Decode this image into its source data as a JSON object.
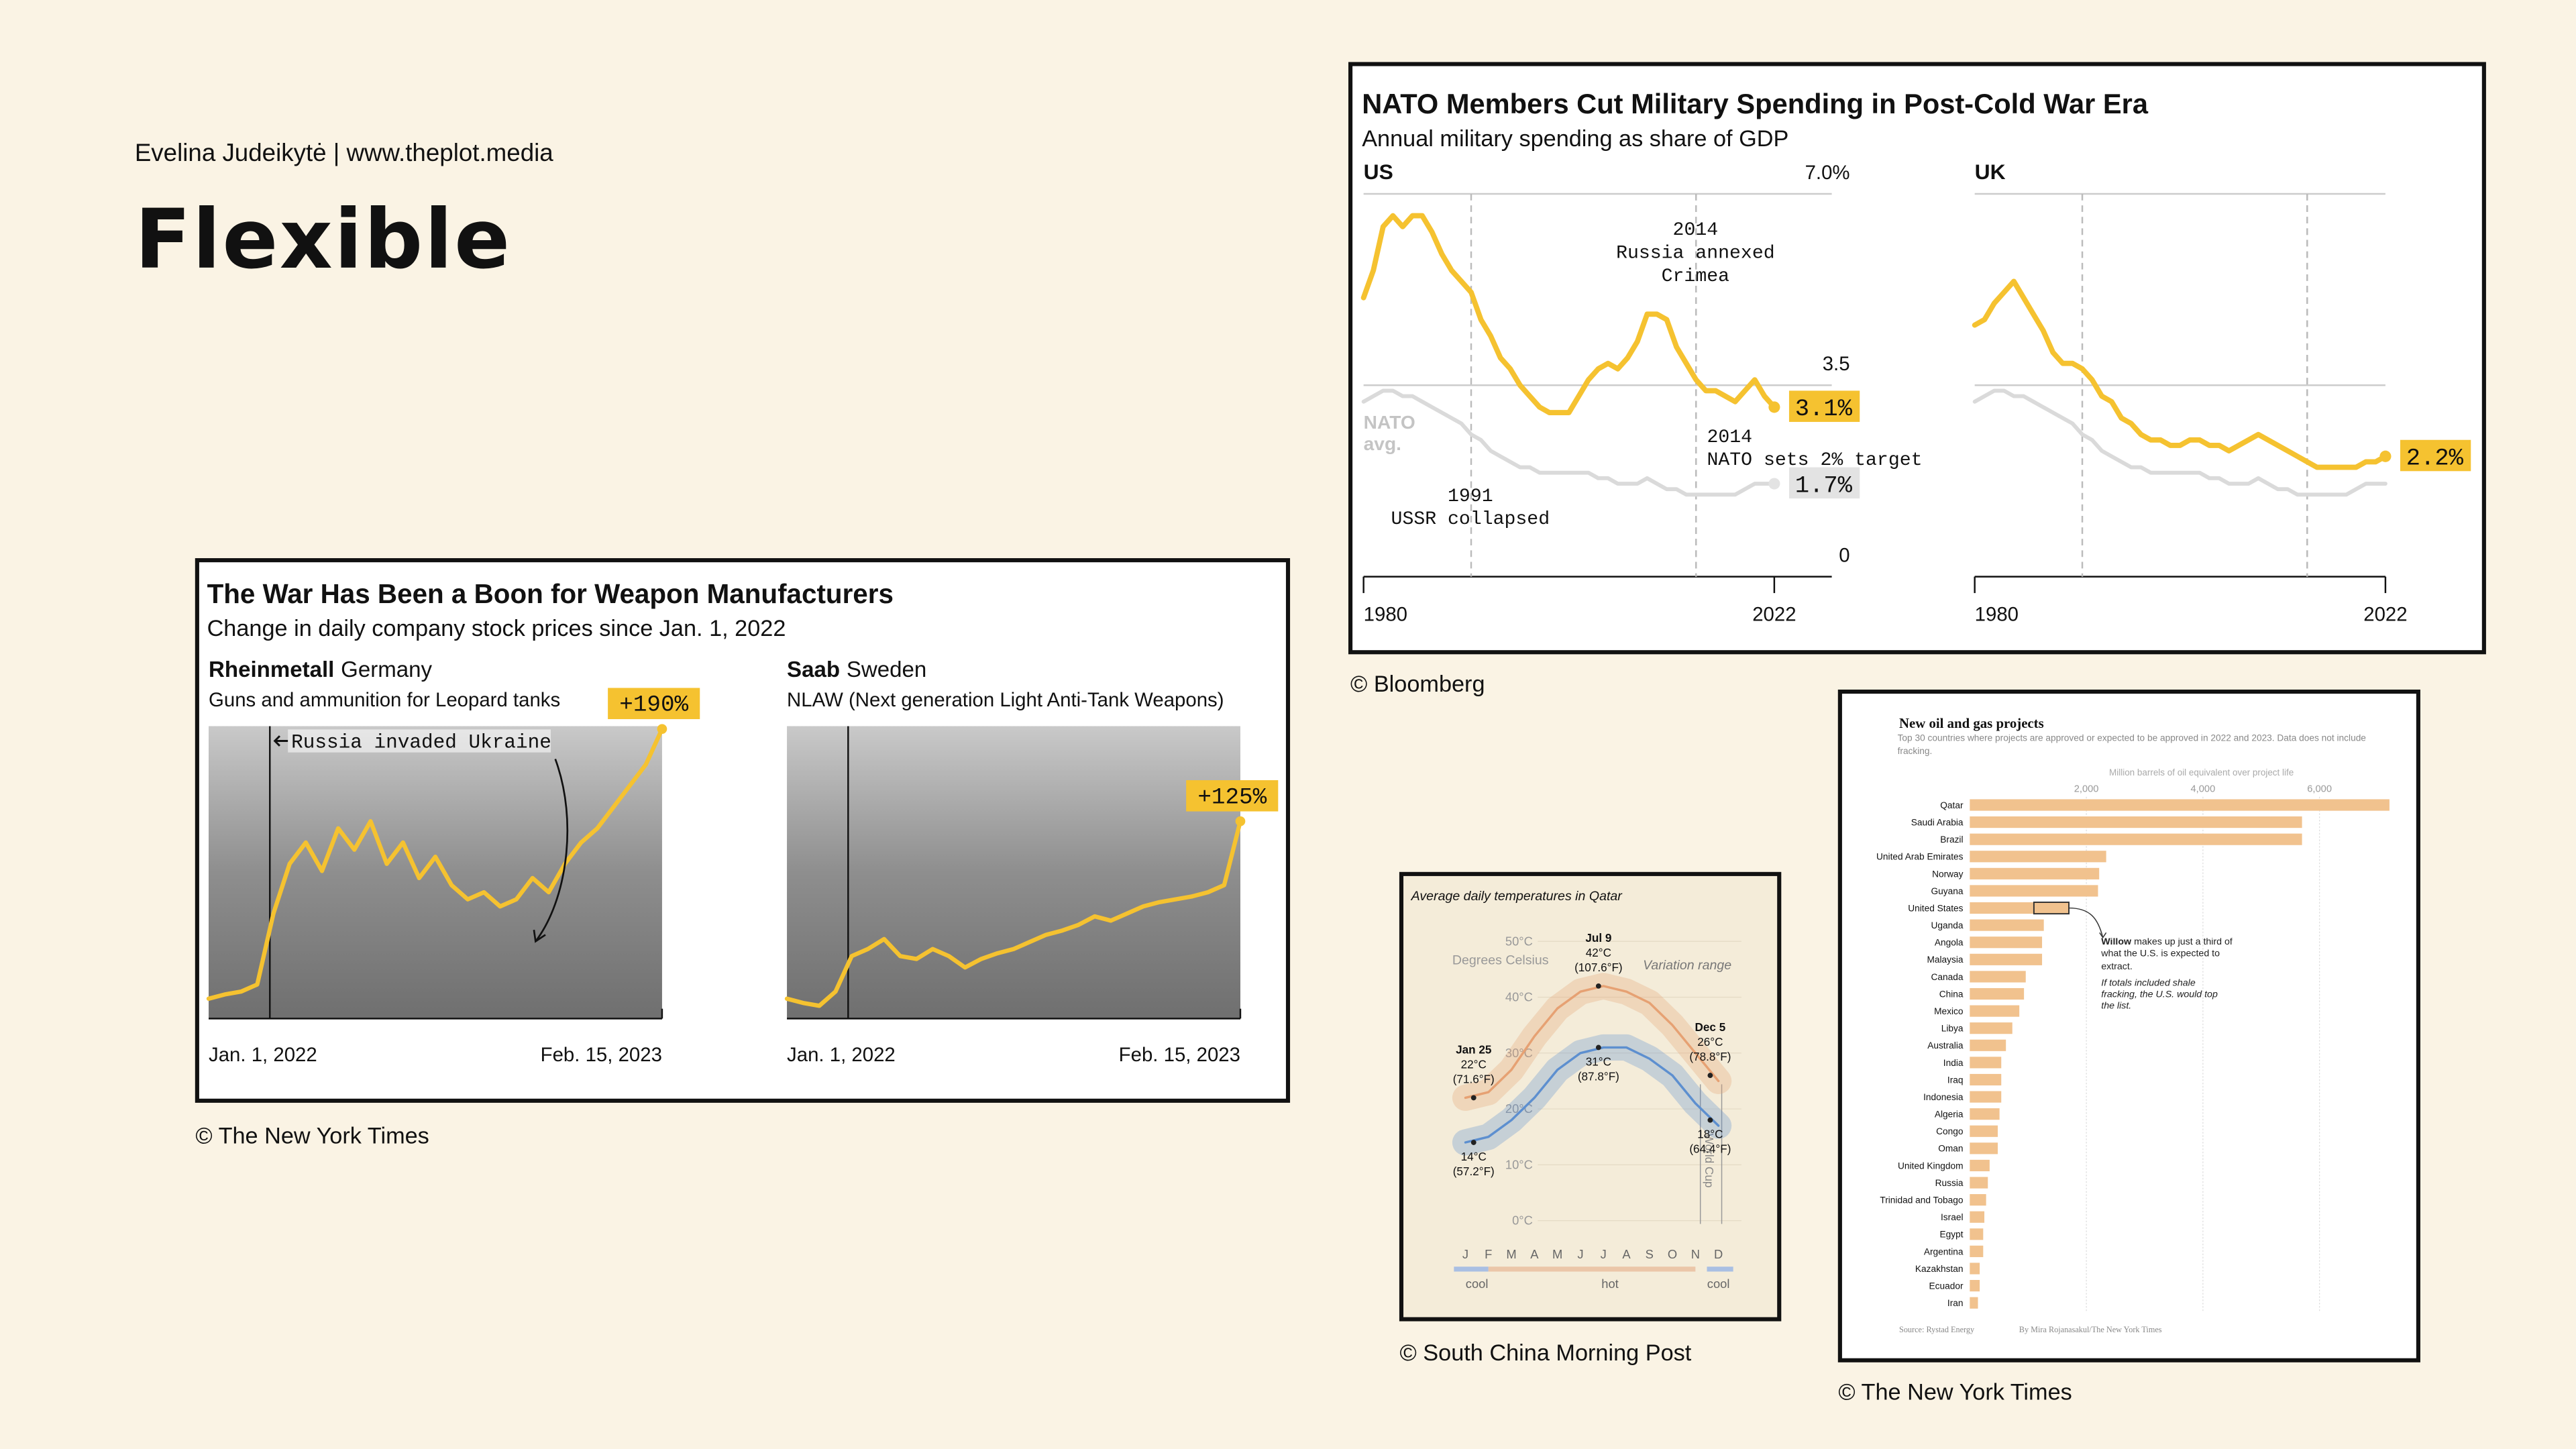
{
  "header": {
    "byline": "Evelina Judeikytė | www.theplot.media",
    "title": "Flexible"
  },
  "credits": [
    "© Bloomberg",
    "© The New York Times",
    "© South China Morning Post",
    "© The New York Times"
  ],
  "chart_data": [
    {
      "type": "line",
      "title": "The War Has Been a Boon for Weapon Manufacturers",
      "subtitle": "Change in daily company stock prices since Jan. 1, 2022",
      "categories": [
        "Jan. 1, 2022",
        null,
        null,
        null,
        null,
        null,
        null,
        null,
        null,
        null,
        null,
        null,
        null,
        null,
        null,
        null,
        null,
        null,
        null,
        null,
        null,
        null,
        null,
        null,
        null,
        null,
        null,
        null,
        "Feb. 15, 2023"
      ],
      "ylim": [
        -14,
        192
      ],
      "color": "#f5c230",
      "annotation": "Russia invaded Ukraine",
      "panels": [
        {
          "company": "Rheinmetall",
          "country": "Germany",
          "description": "Guns and ammunition for Leopard tanks",
          "values": [
            0,
            3,
            5,
            10,
            60,
            95,
            110,
            90,
            120,
            105,
            125,
            95,
            110,
            85,
            100,
            80,
            70,
            75,
            65,
            70,
            85,
            75,
            95,
            110,
            120,
            135,
            150,
            165,
            190
          ],
          "value_labels": [
            null,
            null,
            null,
            null,
            null,
            null,
            null,
            null,
            null,
            null,
            null,
            null,
            null,
            null,
            null,
            null,
            null,
            null,
            null,
            null,
            null,
            null,
            null,
            null,
            null,
            null,
            null,
            null,
            "+190%"
          ]
        },
        {
          "company": "Saab",
          "country": "Sweden",
          "description": "NLAW (Next generation Light Anti-Tank Weapons)",
          "values": [
            0,
            -3,
            -5,
            5,
            30,
            35,
            42,
            30,
            28,
            35,
            30,
            22,
            28,
            32,
            35,
            40,
            45,
            48,
            52,
            58,
            55,
            60,
            65,
            68,
            70,
            72,
            75,
            80,
            125
          ],
          "value_labels": [
            null,
            null,
            null,
            null,
            null,
            null,
            null,
            null,
            null,
            null,
            null,
            null,
            null,
            null,
            null,
            null,
            null,
            null,
            null,
            null,
            null,
            null,
            null,
            null,
            null,
            null,
            null,
            null,
            "+125%"
          ]
        }
      ]
    },
    {
      "type": "line",
      "title": "NATO Members Cut Military Spending in Post-Cold War Era",
      "subtitle": "Annual military spending as share of GDP",
      "x": [
        1980,
        1981,
        1982,
        1983,
        1984,
        1985,
        1986,
        1987,
        1988,
        1989,
        1990,
        1991,
        1992,
        1993,
        1994,
        1995,
        1996,
        1997,
        1998,
        1999,
        2000,
        2001,
        2002,
        2003,
        2004,
        2005,
        2006,
        2007,
        2008,
        2009,
        2010,
        2011,
        2012,
        2013,
        2014,
        2015,
        2016,
        2017,
        2018,
        2019,
        2020,
        2021,
        2022
      ],
      "xlim": [
        1980,
        2022
      ],
      "xticks": [
        1980,
        2022
      ],
      "ylim": [
        0,
        7
      ],
      "yticks": [
        0,
        3.5,
        {
          "value": 7,
          "label": "7.0%"
        }
      ],
      "color": "#f5c230",
      "panels": [
        {
          "title": "US",
          "values": [
            5.1,
            5.6,
            6.4,
            6.6,
            6.4,
            6.6,
            6.6,
            6.3,
            5.9,
            5.6,
            5.4,
            5.2,
            4.7,
            4.4,
            4.0,
            3.8,
            3.5,
            3.3,
            3.1,
            3.0,
            3.0,
            3.0,
            3.3,
            3.6,
            3.8,
            3.9,
            3.8,
            4.0,
            4.3,
            4.8,
            4.8,
            4.7,
            4.2,
            3.9,
            3.6,
            3.4,
            3.4,
            3.3,
            3.2,
            3.4,
            3.6,
            3.3,
            3.1
          ],
          "value_labels": [
            null,
            null,
            null,
            null,
            null,
            null,
            null,
            null,
            null,
            null,
            null,
            null,
            null,
            null,
            null,
            null,
            null,
            null,
            null,
            null,
            null,
            null,
            null,
            null,
            null,
            null,
            null,
            null,
            null,
            null,
            null,
            null,
            null,
            null,
            null,
            null,
            null,
            null,
            null,
            null,
            null,
            null,
            "3.1%"
          ]
        },
        {
          "title": "UK",
          "values": [
            4.6,
            4.7,
            5.0,
            5.2,
            5.4,
            5.1,
            4.8,
            4.5,
            4.1,
            3.9,
            3.9,
            3.8,
            3.6,
            3.3,
            3.2,
            2.9,
            2.8,
            2.6,
            2.5,
            2.5,
            2.4,
            2.4,
            2.5,
            2.5,
            2.4,
            2.4,
            2.3,
            2.4,
            2.5,
            2.6,
            2.5,
            2.4,
            2.3,
            2.2,
            2.1,
            2.0,
            2.0,
            2.0,
            2.0,
            2.0,
            2.1,
            2.1,
            2.2
          ],
          "value_labels": [
            null,
            null,
            null,
            null,
            null,
            null,
            null,
            null,
            null,
            null,
            null,
            null,
            null,
            null,
            null,
            null,
            null,
            null,
            null,
            null,
            null,
            null,
            null,
            null,
            null,
            null,
            null,
            null,
            null,
            null,
            null,
            null,
            null,
            null,
            null,
            null,
            null,
            null,
            null,
            null,
            null,
            null,
            "2.2%"
          ]
        }
      ],
      "reference": {
        "name": "NATO avg.",
        "color": "#dadada",
        "values": [
          3.2,
          3.3,
          3.4,
          3.4,
          3.3,
          3.3,
          3.2,
          3.1,
          3.0,
          2.9,
          2.8,
          2.6,
          2.5,
          2.3,
          2.2,
          2.1,
          2.0,
          2.0,
          1.9,
          1.9,
          1.9,
          1.9,
          1.9,
          1.9,
          1.8,
          1.8,
          1.7,
          1.7,
          1.7,
          1.8,
          1.7,
          1.6,
          1.6,
          1.5,
          1.5,
          1.5,
          1.5,
          1.5,
          1.5,
          1.6,
          1.7,
          1.7,
          1.7
        ],
        "value_labels": [
          null,
          null,
          null,
          null,
          null,
          null,
          null,
          null,
          null,
          null,
          null,
          null,
          null,
          null,
          null,
          null,
          null,
          null,
          null,
          null,
          null,
          null,
          null,
          null,
          null,
          null,
          null,
          null,
          null,
          null,
          null,
          null,
          null,
          null,
          null,
          null,
          null,
          null,
          null,
          null,
          null,
          null,
          "1.7%"
        ]
      },
      "annotations": [
        {
          "x": 2014,
          "text": [
            "Russia annexed",
            "Crimea"
          ]
        },
        {
          "x": 2014,
          "text": [
            "NATO sets 2% target"
          ]
        },
        {
          "x": 1991,
          "text": [
            "USSR collapsed"
          ]
        }
      ]
    },
    {
      "type": "line",
      "title": "Average daily temperatures in Qatar",
      "y_label": "Degrees Celsius",
      "range_label": "Variation range",
      "band_label": "World Cup",
      "categories": [
        "J",
        "F",
        "M",
        "A",
        "M",
        "J",
        "J",
        "A",
        "S",
        "O",
        "N",
        "D"
      ],
      "ylim": [
        0,
        50
      ],
      "yticks": [
        {
          "value": 0,
          "label": "0°C"
        },
        {
          "value": 10,
          "label": "10°C"
        },
        {
          "value": 20,
          "label": "20°C"
        },
        {
          "value": 30,
          "label": "30°C"
        },
        {
          "value": 40,
          "label": "40°C"
        },
        {
          "value": 50,
          "label": "50°C"
        }
      ],
      "series": [
        {
          "color": "#e6a173",
          "values": [
            22,
            23,
            27,
            33,
            38,
            41,
            42,
            41,
            39,
            35,
            30,
            25
          ]
        },
        {
          "color": "#5d8fcf",
          "values": [
            14,
            15,
            18,
            22,
            27,
            30,
            31,
            31,
            29,
            26,
            21,
            17
          ]
        }
      ],
      "points": [
        {
          "date": "Jan 25",
          "high": 22,
          "high_label": "22°C",
          "high_f": "(71.6°F)",
          "low": 14,
          "low_label": "14°C",
          "low_f": "(57.2°F)"
        },
        {
          "date": "Jul 9",
          "high": 42,
          "high_label": "42°C",
          "high_f": "(107.6°F)",
          "low": 31,
          "low_label": "31°C",
          "low_f": "(87.8°F)"
        },
        {
          "date": "Dec 5",
          "high": 26,
          "high_label": "26°C",
          "high_f": "(78.8°F)",
          "low": 18,
          "low_label": "18°C",
          "low_f": "(64.4°F)"
        }
      ],
      "seasons": [
        "cool",
        "hot",
        "cool"
      ]
    },
    {
      "type": "bar",
      "title": "New oil and gas projects",
      "subtitle": "Top 30 countries where projects are approved or expected to be approved in 2022 and 2023. Data does not include fracking.",
      "x_label": "Million barrels of oil equivalent over project life",
      "xlim": [
        0,
        7300
      ],
      "xticks": [
        {
          "value": 2000,
          "label": "2,000"
        },
        {
          "value": 4000,
          "label": "4,000"
        },
        {
          "value": 6000,
          "label": "6,000"
        }
      ],
      "color": "#f1c28e",
      "categories": [
        "Qatar",
        "Saudi Arabia",
        "Brazil",
        "United Arab Emirates",
        "Norway",
        "Guyana",
        "United States",
        "Uganda",
        "Angola",
        "Malaysia",
        "Canada",
        "China",
        "Mexico",
        "Libya",
        "Australia",
        "India",
        "Iraq",
        "Indonesia",
        "Algeria",
        "Congo",
        "Oman",
        "United Kingdom",
        "Russia",
        "Trinidad and Tobago",
        "Israel",
        "Egypt",
        "Argentina",
        "Kazakhstan",
        "Ecuador",
        "Iran"
      ],
      "values": [
        7200,
        5700,
        5700,
        2340,
        2220,
        2200,
        1700,
        1270,
        1240,
        1240,
        960,
        930,
        850,
        730,
        620,
        540,
        540,
        540,
        510,
        480,
        480,
        340,
        310,
        280,
        250,
        230,
        230,
        170,
        170,
        140
      ],
      "highlight": {
        "value": 600,
        "lead": "Willow",
        "text": "makes up just a third of what the U.S. is expected to extract.",
        "extra": "If totals included shale fracking, the U.S. would top the list."
      },
      "source": "Source: Rystad Energy",
      "byline": "By Mira Rojanasakul/The New York Times"
    }
  ]
}
